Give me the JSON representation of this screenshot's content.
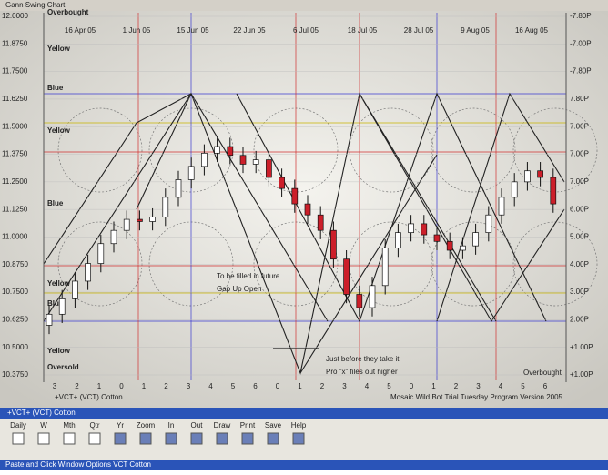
{
  "window_title": "Gann Swing Chart",
  "chart_data": {
    "type": "candlestick",
    "title": "+VCT+ (VCT) Cotton",
    "subtitle": "Mosaic Wild Bot Trial Tuesday Program Version 2005",
    "categories": [
      null,
      null,
      null,
      null,
      null,
      null,
      null,
      null,
      null,
      null,
      null,
      null,
      null,
      null,
      null,
      null,
      null,
      null,
      null,
      null,
      null,
      null,
      null,
      null,
      null,
      null,
      null,
      null,
      null,
      null,
      null,
      null,
      null,
      null,
      null,
      null,
      null,
      null,
      null,
      null
    ],
    "open": [
      10.6,
      10.65,
      10.72,
      10.8,
      10.88,
      10.97,
      11.03,
      11.08,
      11.07,
      11.09,
      11.18,
      11.26,
      11.32,
      11.38,
      11.41,
      11.37,
      11.33,
      11.35,
      11.27,
      11.22,
      11.15,
      11.1,
      11.03,
      10.9,
      10.74,
      10.68,
      10.78,
      10.95,
      11.02,
      11.06,
      11.01,
      10.98,
      10.94,
      10.96,
      11.02,
      11.1,
      11.18,
      11.25,
      11.3,
      11.27
    ],
    "high": [
      10.69,
      10.76,
      10.84,
      10.92,
      11.01,
      11.07,
      11.12,
      11.12,
      11.13,
      11.22,
      11.3,
      11.36,
      11.42,
      11.45,
      11.45,
      11.41,
      11.39,
      11.39,
      11.31,
      11.26,
      11.19,
      11.14,
      11.07,
      10.94,
      10.78,
      10.82,
      10.99,
      11.06,
      11.1,
      11.1,
      11.05,
      11.02,
      11.0,
      11.06,
      11.14,
      11.22,
      11.29,
      11.34,
      11.34,
      11.31
    ],
    "low": [
      10.56,
      10.61,
      10.68,
      10.76,
      10.84,
      10.93,
      10.99,
      11.03,
      11.03,
      11.05,
      11.14,
      11.22,
      11.28,
      11.34,
      11.33,
      11.29,
      11.29,
      11.23,
      11.18,
      11.11,
      11.06,
      10.99,
      10.86,
      10.7,
      10.64,
      10.64,
      10.74,
      10.91,
      10.98,
      10.97,
      10.94,
      10.9,
      10.9,
      10.92,
      10.98,
      11.06,
      11.14,
      11.21,
      11.23,
      11.11
    ],
    "close": [
      10.65,
      10.72,
      10.8,
      10.88,
      10.97,
      11.03,
      11.08,
      11.07,
      11.09,
      11.18,
      11.26,
      11.32,
      11.38,
      11.41,
      11.37,
      11.33,
      11.35,
      11.27,
      11.22,
      11.15,
      11.1,
      11.03,
      10.9,
      10.74,
      10.68,
      10.78,
      10.95,
      11.02,
      11.06,
      11.01,
      10.98,
      10.94,
      10.96,
      11.02,
      11.1,
      11.18,
      11.25,
      11.3,
      11.27,
      11.15
    ],
    "up_color": "#ffffff",
    "down_color": "#cc1f2a",
    "ylim": [
      10.375,
      12.0
    ],
    "yticks": [
      {
        "value": 10.375,
        "label": "10.3750"
      },
      {
        "value": 10.5,
        "label": "10.5000"
      },
      {
        "value": 10.625,
        "label": "10.6250"
      },
      {
        "value": 10.75,
        "label": "10.7500"
      },
      {
        "value": 10.875,
        "label": "10.8750"
      },
      {
        "value": 11.0,
        "label": "11.0000"
      },
      {
        "value": 11.125,
        "label": "11.1250"
      },
      {
        "value": 11.25,
        "label": "11.2500"
      },
      {
        "value": 11.375,
        "label": "11.3750"
      },
      {
        "value": 11.5,
        "label": "11.5000"
      },
      {
        "value": 11.625,
        "label": "11.6250"
      },
      {
        "value": 11.75,
        "label": "11.7500"
      },
      {
        "value": 11.875,
        "label": "11.8750"
      },
      {
        "value": 12.0,
        "label": "12.0000"
      }
    ],
    "right_axis_labels": [
      "+1.00P",
      "+1.00P",
      "2.00P",
      "3.00P",
      "4.00P",
      "5.00P",
      "6.00P",
      "7.00P",
      "7.00P",
      "7.00P",
      "7.80P",
      "-7.80P",
      "-7.00P",
      "-7.80P"
    ],
    "top_labels": [
      "16 Apr 05",
      "1 Jun 05",
      "15 Jun 05",
      "22 Jun 05",
      "6 Jul 05",
      "18 Jul 05",
      "28 Jul 05",
      "9 Aug 05",
      "16 Aug 05"
    ],
    "bottom_labels": [
      "3",
      "2",
      "1",
      "0",
      "1",
      "2",
      "3",
      "4",
      "5",
      "6",
      "0",
      "1",
      "2",
      "3",
      "4",
      "5",
      "0",
      "1",
      "2",
      "3",
      "4",
      "5",
      "6"
    ],
    "zone_labels": [
      "Oversold",
      "Yellow",
      "Blue",
      "Yellow",
      "Blue",
      "Yellow",
      "Blue",
      "Yellow",
      "Overbought"
    ],
    "annotations": [
      "Gap Up Open",
      "To be filled in future",
      "Just before they take it.",
      "Pro \"x\" files out higher",
      "Overbought"
    ],
    "grid": true
  },
  "toolbar": {
    "items": [
      "Daily",
      "W",
      "Mth",
      "Qtr",
      "Yr",
      "Zoom",
      "In",
      "Out",
      "Draw",
      "Print",
      "Save",
      "Help"
    ]
  },
  "status": "Paste and Click   Window Options   VCT Cotton"
}
